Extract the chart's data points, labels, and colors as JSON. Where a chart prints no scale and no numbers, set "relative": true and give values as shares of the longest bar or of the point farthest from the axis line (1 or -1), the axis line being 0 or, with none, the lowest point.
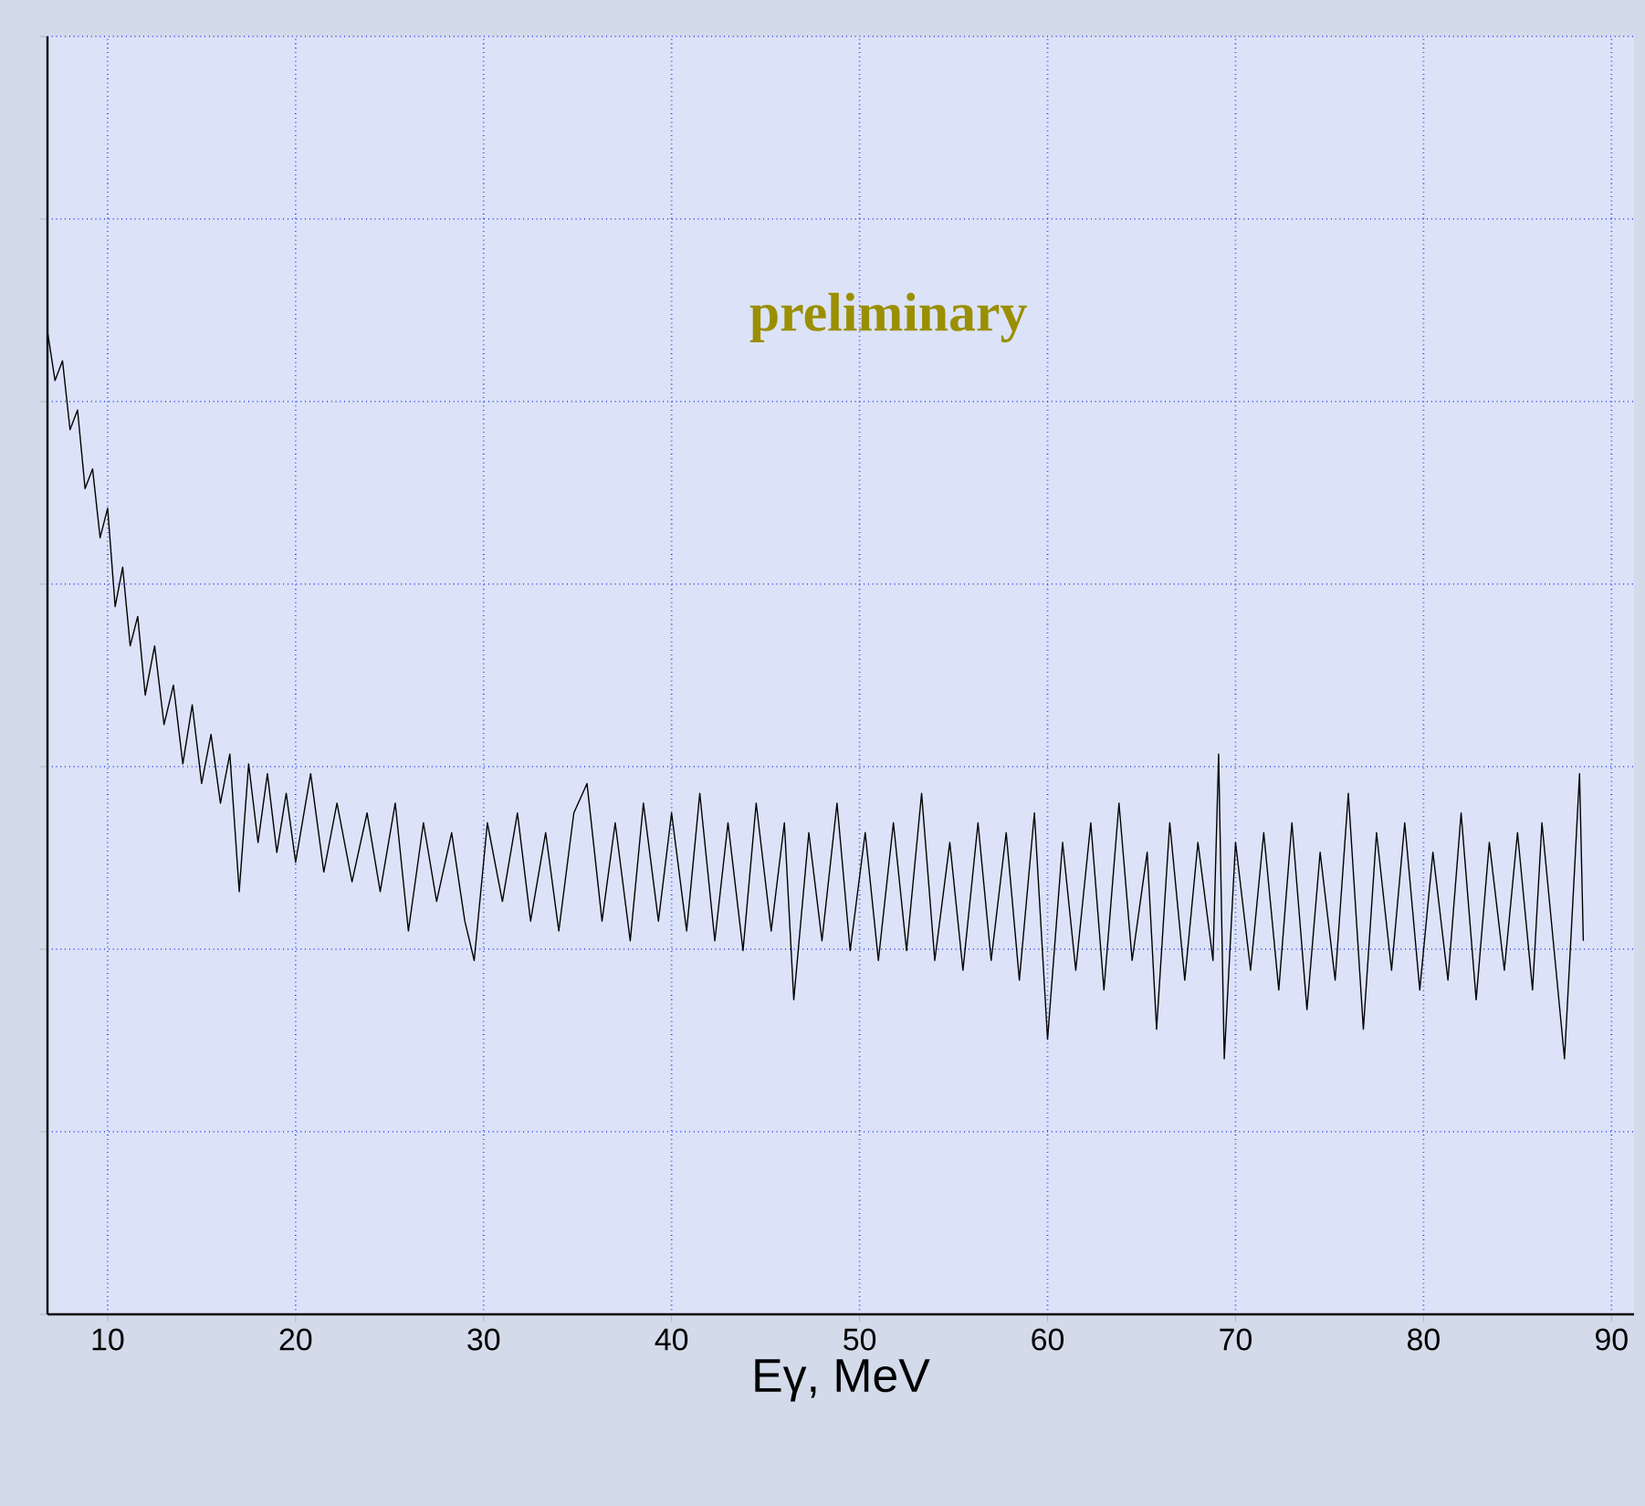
{
  "chart_data": {
    "type": "line",
    "xlabel": "Eγ, MeV",
    "relative": true,
    "annotations": [
      "preliminary"
    ],
    "xlim": [
      6.8,
      91.2
    ],
    "xticks": [
      10,
      20,
      30,
      40,
      50,
      60,
      70,
      80,
      90
    ],
    "grid": true,
    "line_style": "solid",
    "series": [
      {
        "color": "#000000",
        "x": [
          6.8,
          7.2,
          7.6,
          8.0,
          8.4,
          8.8,
          9.2,
          9.6,
          10.0,
          10.4,
          10.8,
          11.2,
          11.6,
          12.0,
          12.5,
          13.0,
          13.5,
          14.0,
          14.5,
          15.0,
          15.5,
          16.0,
          16.5,
          17.0,
          17.5,
          18.0,
          18.5,
          19.0,
          19.5,
          20.0,
          20.8,
          21.5,
          22.2,
          23.0,
          23.8,
          24.5,
          25.3,
          26.0,
          26.8,
          27.5,
          28.3,
          29.0,
          29.5,
          30.2,
          31.0,
          31.8,
          32.5,
          33.3,
          34.0,
          34.8,
          35.5,
          36.3,
          37.0,
          37.8,
          38.5,
          39.3,
          40.0,
          40.8,
          41.5,
          42.3,
          43.0,
          43.8,
          44.5,
          45.3,
          46.0,
          46.5,
          47.3,
          48.0,
          48.8,
          49.5,
          50.3,
          51.0,
          51.8,
          52.5,
          53.3,
          54.0,
          54.8,
          55.5,
          56.3,
          57.0,
          57.8,
          58.5,
          59.3,
          60.0,
          60.8,
          61.5,
          62.3,
          63.0,
          63.8,
          64.5,
          65.3,
          65.8,
          66.5,
          67.3,
          68.0,
          68.8,
          69.1,
          69.4,
          70.0,
          70.8,
          71.5,
          72.3,
          73.0,
          73.8,
          74.5,
          75.3,
          76.0,
          76.8,
          77.5,
          78.3,
          79.0,
          79.8,
          80.5,
          81.3,
          82.0,
          82.8,
          83.5,
          84.3,
          85.0,
          85.8,
          86.3,
          87.0,
          87.5,
          88.0,
          88.3,
          88.5
        ],
        "values": [
          1.0,
          0.95,
          0.97,
          0.9,
          0.92,
          0.84,
          0.86,
          0.79,
          0.82,
          0.72,
          0.76,
          0.68,
          0.71,
          0.63,
          0.68,
          0.6,
          0.64,
          0.56,
          0.62,
          0.54,
          0.59,
          0.52,
          0.57,
          0.43,
          0.56,
          0.48,
          0.55,
          0.47,
          0.53,
          0.46,
          0.55,
          0.45,
          0.52,
          0.44,
          0.51,
          0.43,
          0.52,
          0.39,
          0.5,
          0.42,
          0.49,
          0.4,
          0.36,
          0.5,
          0.42,
          0.51,
          0.4,
          0.49,
          0.39,
          0.51,
          0.54,
          0.4,
          0.5,
          0.38,
          0.52,
          0.4,
          0.51,
          0.39,
          0.53,
          0.38,
          0.5,
          0.37,
          0.52,
          0.39,
          0.5,
          0.32,
          0.49,
          0.38,
          0.52,
          0.37,
          0.49,
          0.36,
          0.5,
          0.37,
          0.53,
          0.36,
          0.48,
          0.35,
          0.5,
          0.36,
          0.49,
          0.34,
          0.51,
          0.28,
          0.48,
          0.35,
          0.5,
          0.33,
          0.52,
          0.36,
          0.47,
          0.29,
          0.5,
          0.34,
          0.48,
          0.36,
          0.57,
          0.26,
          0.48,
          0.35,
          0.49,
          0.33,
          0.5,
          0.31,
          0.47,
          0.34,
          0.53,
          0.29,
          0.49,
          0.35,
          0.5,
          0.33,
          0.47,
          0.34,
          0.51,
          0.32,
          0.48,
          0.35,
          0.49,
          0.33,
          0.5,
          0.36,
          0.26,
          0.44,
          0.55,
          0.38
        ]
      }
    ]
  }
}
